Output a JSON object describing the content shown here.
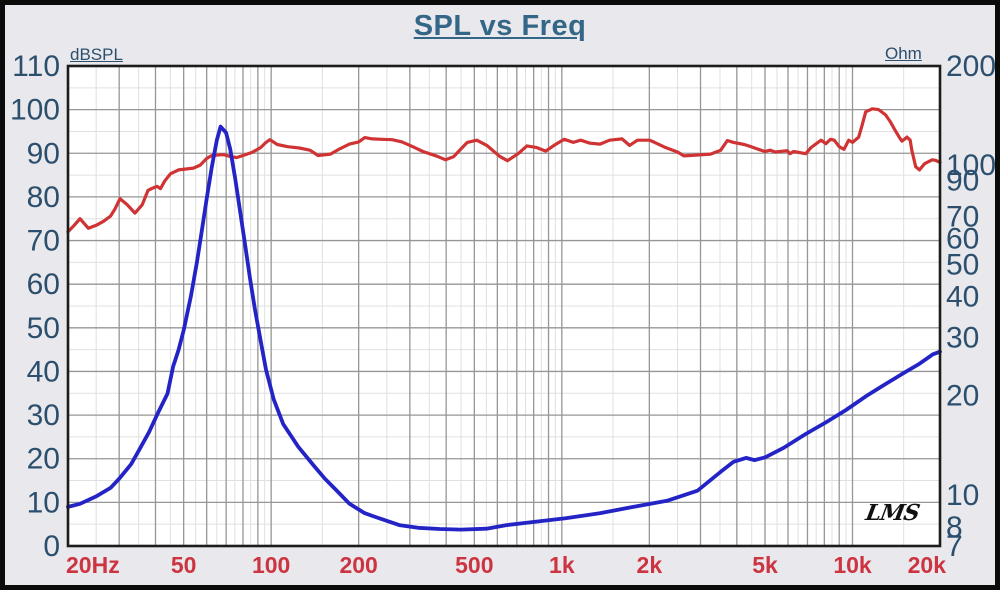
{
  "chart_data": {
    "type": "line",
    "title": "SPL vs Freq",
    "watermark": "LMS",
    "x_axis": {
      "scale": "log",
      "min": 20,
      "max": 20000,
      "tick_values": [
        20,
        50,
        100,
        200,
        500,
        1000,
        2000,
        5000,
        10000,
        20000
      ],
      "tick_labels": [
        "20Hz",
        "50",
        "100",
        "200",
        "500",
        "1k",
        "2k",
        "5k",
        "10k",
        "20k"
      ]
    },
    "y_left": {
      "label": "dBSPL",
      "scale": "linear",
      "min": 0,
      "max": 110,
      "tick_values": [
        110,
        100,
        90,
        80,
        70,
        60,
        50,
        40,
        30,
        20,
        10,
        0
      ]
    },
    "y_right": {
      "label": "Ohm",
      "scale": "log",
      "min": 7,
      "max": 200,
      "tick_values": [
        200,
        100,
        90,
        70,
        60,
        50,
        40,
        30,
        20,
        10,
        8,
        7
      ]
    },
    "grid": {
      "major_color": "#969696",
      "minor_color": "#e0e0e0",
      "shown": true
    },
    "colors": {
      "margin_bg": "#e9e9ed",
      "plot_bg": "#ffffff",
      "frame": "#1c1c1c",
      "outer_border": "#0b0b0b",
      "axis_text": "#2c4f6e",
      "x_label_text": "#cb3440",
      "title_text": "#336687",
      "spl_series": "#d03334",
      "impedance_series": "#2424c6"
    },
    "series": [
      {
        "name": "SPL",
        "axis": "left",
        "color": "#d03334",
        "points": [
          [
            20,
            72
          ],
          [
            21,
            73.5
          ],
          [
            22,
            75
          ],
          [
            23.5,
            72.8
          ],
          [
            25,
            73.5
          ],
          [
            26.5,
            74.4
          ],
          [
            28,
            75.6
          ],
          [
            29,
            77.2
          ],
          [
            30.2,
            79.6
          ],
          [
            32,
            78.2
          ],
          [
            34,
            76.3
          ],
          [
            36,
            78.2
          ],
          [
            37.7,
            81.5
          ],
          [
            39,
            82
          ],
          [
            40.5,
            82.4
          ],
          [
            41.6,
            81.9
          ],
          [
            43,
            83.6
          ],
          [
            45,
            85.3
          ],
          [
            48,
            86.2
          ],
          [
            51,
            86.4
          ],
          [
            54,
            86.6
          ],
          [
            57,
            87.3
          ],
          [
            60,
            88.8
          ],
          [
            62.5,
            89.5
          ],
          [
            65,
            89.6
          ],
          [
            68.5,
            89.7
          ],
          [
            72,
            89.3
          ],
          [
            76,
            89
          ],
          [
            80,
            89.5
          ],
          [
            86,
            90.2
          ],
          [
            92,
            91.3
          ],
          [
            96,
            92.5
          ],
          [
            99,
            93.1
          ],
          [
            105,
            92
          ],
          [
            114,
            91.5
          ],
          [
            125,
            91.2
          ],
          [
            136,
            90.7
          ],
          [
            145,
            89.5
          ],
          [
            160,
            89.8
          ],
          [
            172,
            91
          ],
          [
            186,
            92.1
          ],
          [
            200,
            92.6
          ],
          [
            210,
            93.6
          ],
          [
            223,
            93.3
          ],
          [
            240,
            93.2
          ],
          [
            261,
            93.1
          ],
          [
            282,
            92.6
          ],
          [
            307,
            91.5
          ],
          [
            333,
            90.4
          ],
          [
            373,
            89.3
          ],
          [
            398,
            88.5
          ],
          [
            424,
            89.2
          ],
          [
            450,
            91
          ],
          [
            473,
            92.5
          ],
          [
            510,
            93
          ],
          [
            552,
            91.8
          ],
          [
            611,
            89.3
          ],
          [
            650,
            88.3
          ],
          [
            707,
            89.9
          ],
          [
            758,
            91.7
          ],
          [
            820,
            91.3
          ],
          [
            880,
            90.5
          ],
          [
            950,
            92
          ],
          [
            1020,
            93.2
          ],
          [
            1095,
            92.5
          ],
          [
            1160,
            93
          ],
          [
            1250,
            92.3
          ],
          [
            1353,
            92.1
          ],
          [
            1460,
            93
          ],
          [
            1610,
            93.3
          ],
          [
            1710,
            91.8
          ],
          [
            1820,
            93
          ],
          [
            2005,
            93
          ],
          [
            2085,
            92.5
          ],
          [
            2260,
            91.4
          ],
          [
            2500,
            90.3
          ],
          [
            2630,
            89.4
          ],
          [
            2930,
            89.6
          ],
          [
            3250,
            89.8
          ],
          [
            3520,
            90.7
          ],
          [
            3710,
            92.9
          ],
          [
            3900,
            92.5
          ],
          [
            4240,
            92
          ],
          [
            4480,
            91.5
          ],
          [
            4740,
            90.9
          ],
          [
            5000,
            90.4
          ],
          [
            5200,
            90.7
          ],
          [
            5430,
            90.3
          ],
          [
            5950,
            90.6
          ],
          [
            6100,
            89.9
          ],
          [
            6270,
            90.4
          ],
          [
            6900,
            89.9
          ],
          [
            7200,
            91.3
          ],
          [
            7500,
            92.2
          ],
          [
            7800,
            93
          ],
          [
            8100,
            92.2
          ],
          [
            8400,
            93.2
          ],
          [
            8650,
            93
          ],
          [
            9000,
            91.5
          ],
          [
            9350,
            90.9
          ],
          [
            9700,
            93
          ],
          [
            10000,
            92.5
          ],
          [
            10500,
            93.7
          ],
          [
            10800,
            96.5
          ],
          [
            11100,
            99.5
          ],
          [
            11700,
            100.2
          ],
          [
            12300,
            100
          ],
          [
            13000,
            98.8
          ],
          [
            13500,
            97.2
          ],
          [
            14000,
            95.3
          ],
          [
            14600,
            93.3
          ],
          [
            14800,
            92.8
          ],
          [
            15400,
            93.7
          ],
          [
            15800,
            93
          ],
          [
            16000,
            90.7
          ],
          [
            16500,
            86.9
          ],
          [
            17000,
            86.2
          ],
          [
            17700,
            87.6
          ],
          [
            18800,
            88.5
          ],
          [
            19300,
            88.4
          ],
          [
            20000,
            87.9
          ]
        ]
      },
      {
        "name": "Impedance",
        "axis": "right",
        "color": "#2424c6",
        "points": [
          [
            20,
            9.2
          ],
          [
            22,
            9.4
          ],
          [
            25,
            9.9
          ],
          [
            28,
            10.5
          ],
          [
            30,
            11.2
          ],
          [
            33,
            12.4
          ],
          [
            35,
            13.6
          ],
          [
            38,
            15.5
          ],
          [
            41,
            17.9
          ],
          [
            44,
            20.3
          ],
          [
            46,
            24.5
          ],
          [
            48,
            27.5
          ],
          [
            50,
            31.6
          ],
          [
            53,
            40.2
          ],
          [
            55.6,
            51.2
          ],
          [
            57.7,
            63
          ],
          [
            60,
            79.2
          ],
          [
            62.5,
            98.8
          ],
          [
            65,
            119
          ],
          [
            67,
            131
          ],
          [
            70,
            125.4
          ],
          [
            72.3,
            112
          ],
          [
            75.2,
            91.1
          ],
          [
            78.2,
            72.5
          ],
          [
            81.3,
            57.7
          ],
          [
            84.5,
            45.6
          ],
          [
            87.9,
            36.6
          ],
          [
            92,
            29.4
          ],
          [
            96,
            24
          ],
          [
            102,
            19.5
          ],
          [
            110,
            16.4
          ],
          [
            124,
            14
          ],
          [
            141,
            12.2
          ],
          [
            153,
            11.2
          ],
          [
            170,
            10.2
          ],
          [
            186,
            9.4
          ],
          [
            210,
            8.8
          ],
          [
            226,
            8.6
          ],
          [
            276,
            8.1
          ],
          [
            320,
            7.95
          ],
          [
            380,
            7.88
          ],
          [
            450,
            7.85
          ],
          [
            550,
            7.9
          ],
          [
            645,
            8.1
          ],
          [
            790,
            8.27
          ],
          [
            1030,
            8.5
          ],
          [
            1350,
            8.8
          ],
          [
            1760,
            9.2
          ],
          [
            2300,
            9.6
          ],
          [
            2930,
            10.3
          ],
          [
            3520,
            11.75
          ],
          [
            3900,
            12.6
          ],
          [
            4300,
            12.95
          ],
          [
            4600,
            12.75
          ],
          [
            5000,
            13
          ],
          [
            5800,
            13.9
          ],
          [
            6900,
            15.3
          ],
          [
            8100,
            16.6
          ],
          [
            9500,
            18.1
          ],
          [
            11100,
            19.9
          ],
          [
            13000,
            21.7
          ],
          [
            15200,
            23.6
          ],
          [
            17000,
            25
          ],
          [
            18900,
            26.7
          ],
          [
            20000,
            27.2
          ]
        ]
      }
    ]
  }
}
